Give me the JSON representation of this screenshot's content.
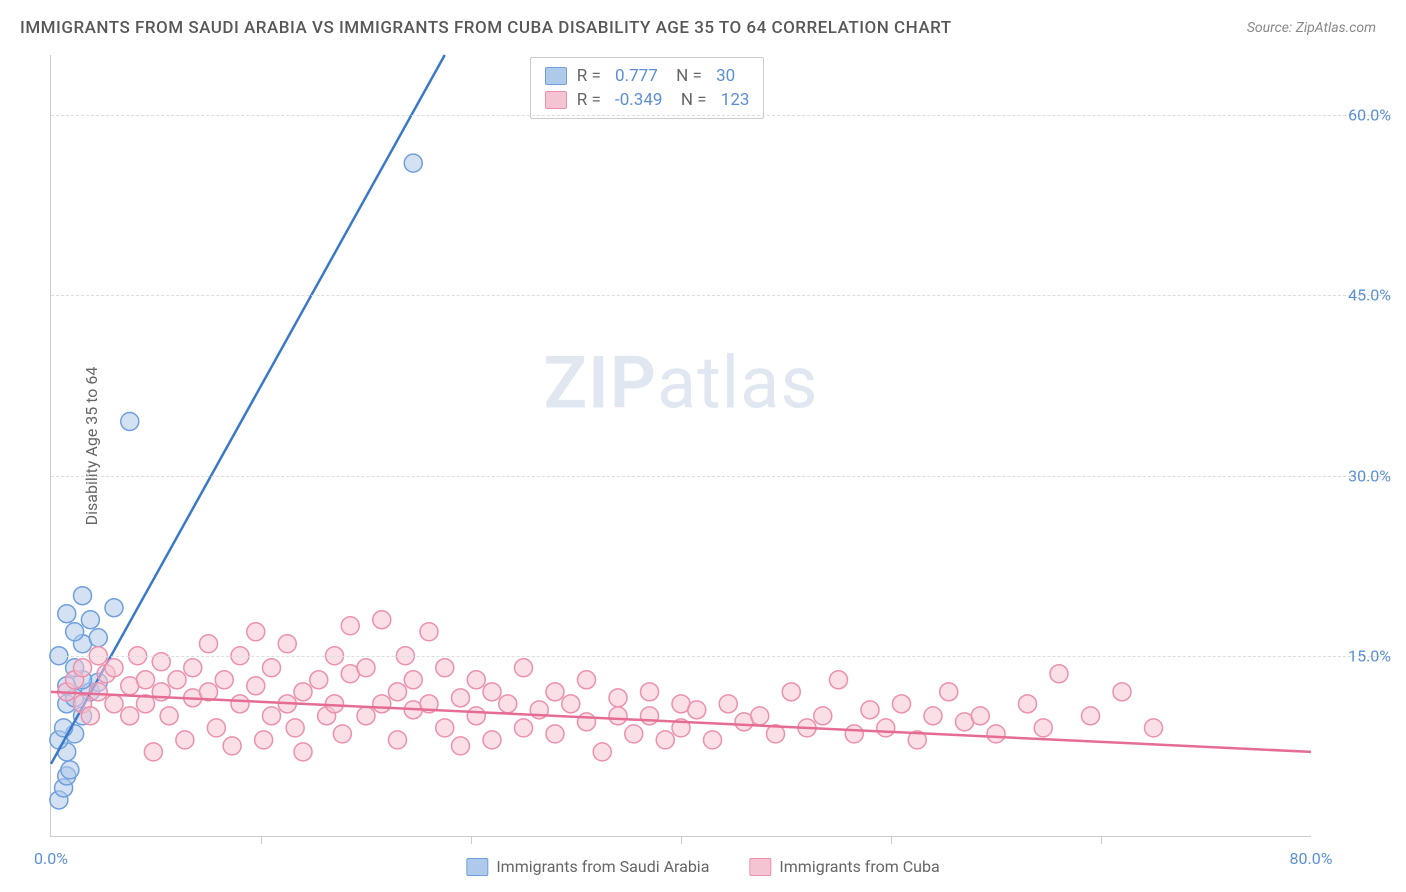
{
  "title": "IMMIGRANTS FROM SAUDI ARABIA VS IMMIGRANTS FROM CUBA DISABILITY AGE 35 TO 64 CORRELATION CHART",
  "source": "Source: ZipAtlas.com",
  "ylabel": "Disability Age 35 to 64",
  "watermark_a": "ZIP",
  "watermark_b": "atlas",
  "xlim": [
    0,
    80
  ],
  "ylim": [
    0,
    65
  ],
  "x_ticks": [
    0,
    80
  ],
  "x_tick_labels": [
    "0.0%",
    "80.0%"
  ],
  "y_ticks": [
    15,
    30,
    45,
    60
  ],
  "y_tick_labels": [
    "15.0%",
    "30.0%",
    "45.0%",
    "60.0%"
  ],
  "grid_color": "#dddddd",
  "axis_color": "#cccccc",
  "tick_label_color": "#5a8fd6",
  "series": [
    {
      "name": "Immigrants from Saudi Arabia",
      "color_fill": "#aec9ea",
      "color_stroke": "#6fa0dd",
      "line_color": "#3b78cc",
      "R": "0.777",
      "N": "30",
      "marker_r": 9,
      "line": {
        "x1": 0,
        "y1": 6,
        "x2": 25,
        "y2": 65
      },
      "points": [
        [
          0.5,
          3
        ],
        [
          0.8,
          4
        ],
        [
          1.0,
          5
        ],
        [
          1.2,
          5.5
        ],
        [
          1.0,
          7
        ],
        [
          0.5,
          8
        ],
        [
          1.5,
          8.5
        ],
        [
          0.8,
          9
        ],
        [
          2.0,
          10
        ],
        [
          1.0,
          11
        ],
        [
          1.5,
          11.5
        ],
        [
          2.5,
          12
        ],
        [
          1.0,
          12.5
        ],
        [
          3.0,
          12.8
        ],
        [
          2.0,
          13
        ],
        [
          1.5,
          14
        ],
        [
          0.5,
          15
        ],
        [
          2.0,
          16
        ],
        [
          3.0,
          16.5
        ],
        [
          1.5,
          17
        ],
        [
          2.5,
          18
        ],
        [
          1.0,
          18.5
        ],
        [
          4.0,
          19
        ],
        [
          2.0,
          20
        ],
        [
          5.0,
          34.5
        ],
        [
          23.0,
          56
        ]
      ]
    },
    {
      "name": "Immigrants from Cuba",
      "color_fill": "#f5c4d3",
      "color_stroke": "#ec91ad",
      "line_color": "#e56d93",
      "R": "-0.349",
      "N": "123",
      "marker_r": 9,
      "line": {
        "x1": 0,
        "y1": 12,
        "x2": 80,
        "y2": 7
      },
      "points": [
        [
          1,
          12
        ],
        [
          1.5,
          13
        ],
        [
          2,
          14
        ],
        [
          2,
          11
        ],
        [
          2.5,
          10
        ],
        [
          3,
          15
        ],
        [
          3,
          12
        ],
        [
          3.5,
          13.5
        ],
        [
          4,
          11
        ],
        [
          4,
          14
        ],
        [
          5,
          10
        ],
        [
          5,
          12.5
        ],
        [
          5.5,
          15
        ],
        [
          6,
          11
        ],
        [
          6,
          13
        ],
        [
          6.5,
          7
        ],
        [
          7,
          12
        ],
        [
          7,
          14.5
        ],
        [
          7.5,
          10
        ],
        [
          8,
          13
        ],
        [
          8.5,
          8
        ],
        [
          9,
          11.5
        ],
        [
          9,
          14
        ],
        [
          10,
          12
        ],
        [
          10,
          16
        ],
        [
          10.5,
          9
        ],
        [
          11,
          13
        ],
        [
          11.5,
          7.5
        ],
        [
          12,
          11
        ],
        [
          12,
          15
        ],
        [
          13,
          12.5
        ],
        [
          13,
          17
        ],
        [
          13.5,
          8
        ],
        [
          14,
          10
        ],
        [
          14,
          14
        ],
        [
          15,
          11
        ],
        [
          15,
          16
        ],
        [
          15.5,
          9
        ],
        [
          16,
          12
        ],
        [
          16,
          7
        ],
        [
          17,
          13
        ],
        [
          17.5,
          10
        ],
        [
          18,
          15
        ],
        [
          18,
          11
        ],
        [
          18.5,
          8.5
        ],
        [
          19,
          13.5
        ],
        [
          19,
          17.5
        ],
        [
          20,
          10
        ],
        [
          20,
          14
        ],
        [
          21,
          11
        ],
        [
          21,
          18
        ],
        [
          22,
          12
        ],
        [
          22,
          8
        ],
        [
          22.5,
          15
        ],
        [
          23,
          10.5
        ],
        [
          23,
          13
        ],
        [
          24,
          17
        ],
        [
          24,
          11
        ],
        [
          25,
          9
        ],
        [
          25,
          14
        ],
        [
          26,
          11.5
        ],
        [
          26,
          7.5
        ],
        [
          27,
          13
        ],
        [
          27,
          10
        ],
        [
          28,
          12
        ],
        [
          28,
          8
        ],
        [
          29,
          11
        ],
        [
          30,
          14
        ],
        [
          30,
          9
        ],
        [
          31,
          10.5
        ],
        [
          32,
          12
        ],
        [
          32,
          8.5
        ],
        [
          33,
          11
        ],
        [
          34,
          9.5
        ],
        [
          34,
          13
        ],
        [
          35,
          7
        ],
        [
          36,
          10
        ],
        [
          36,
          11.5
        ],
        [
          37,
          8.5
        ],
        [
          38,
          10
        ],
        [
          38,
          12
        ],
        [
          39,
          8
        ],
        [
          40,
          11
        ],
        [
          40,
          9
        ],
        [
          41,
          10.5
        ],
        [
          42,
          8
        ],
        [
          43,
          11
        ],
        [
          44,
          9.5
        ],
        [
          45,
          10
        ],
        [
          46,
          8.5
        ],
        [
          47,
          12
        ],
        [
          48,
          9
        ],
        [
          49,
          10
        ],
        [
          50,
          13
        ],
        [
          51,
          8.5
        ],
        [
          52,
          10.5
        ],
        [
          53,
          9
        ],
        [
          54,
          11
        ],
        [
          55,
          8
        ],
        [
          56,
          10
        ],
        [
          57,
          12
        ],
        [
          58,
          9.5
        ],
        [
          59,
          10
        ],
        [
          60,
          8.5
        ],
        [
          62,
          11
        ],
        [
          63,
          9
        ],
        [
          64,
          13.5
        ],
        [
          66,
          10
        ],
        [
          68,
          12
        ],
        [
          70,
          9
        ]
      ]
    }
  ],
  "bottom_legend": [
    {
      "label": "Immigrants from Saudi Arabia",
      "fill": "#aec9ea",
      "stroke": "#6fa0dd"
    },
    {
      "label": "Immigrants from Cuba",
      "fill": "#f5c4d3",
      "stroke": "#ec91ad"
    }
  ]
}
